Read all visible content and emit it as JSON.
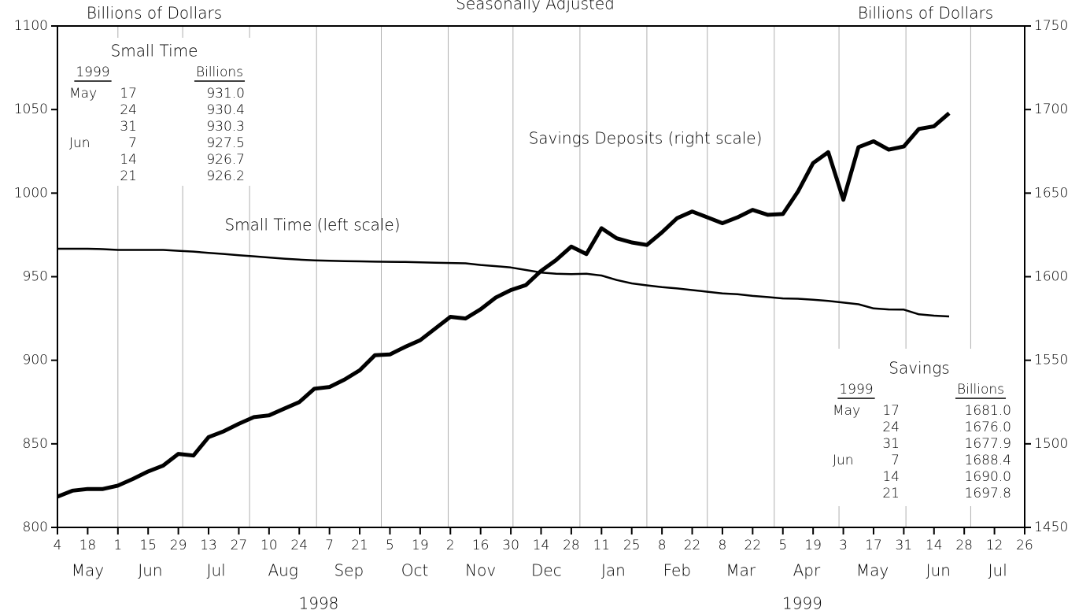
{
  "chart_data": {
    "type": "line",
    "title": "Seasonally Adjusted",
    "y_label": "Billions of Dollars",
    "y2_label": "Billions of Dollars",
    "x": [
      "1998-05-04",
      "1998-05-11",
      "1998-05-18",
      "1998-05-25",
      "1998-06-01",
      "1998-06-08",
      "1998-06-15",
      "1998-06-22",
      "1998-06-29",
      "1998-07-06",
      "1998-07-13",
      "1998-07-20",
      "1998-07-27",
      "1998-08-03",
      "1998-08-10",
      "1998-08-17",
      "1998-08-24",
      "1998-08-31",
      "1998-09-07",
      "1998-09-14",
      "1998-09-21",
      "1998-09-28",
      "1998-10-05",
      "1998-10-12",
      "1998-10-19",
      "1998-10-26",
      "1998-11-02",
      "1998-11-09",
      "1998-11-16",
      "1998-11-23",
      "1998-11-30",
      "1998-12-07",
      "1998-12-14",
      "1998-12-21",
      "1998-12-28",
      "1999-01-04",
      "1999-01-11",
      "1999-01-18",
      "1999-01-25",
      "1999-02-01",
      "1999-02-08",
      "1999-02-15",
      "1999-02-22",
      "1999-03-01",
      "1999-03-08",
      "1999-03-15",
      "1999-03-22",
      "1999-03-29",
      "1999-04-05",
      "1999-04-12",
      "1999-04-19",
      "1999-04-26",
      "1999-05-03",
      "1999-05-10",
      "1999-05-17",
      "1999-05-24",
      "1999-05-31",
      "1999-06-07",
      "1999-06-14",
      "1999-06-21"
    ],
    "series": [
      {
        "name": "Small Time (left scale)",
        "color": "#000000",
        "axis": "y",
        "values": [
          966.7,
          966.7,
          966.7,
          966.5,
          966.0,
          966.0,
          966.0,
          966.0,
          965.5,
          965.0,
          964.2,
          963.6,
          962.8,
          962.2,
          961.5,
          960.8,
          960.2,
          959.8,
          959.5,
          959.3,
          959.2,
          959.0,
          958.9,
          958.8,
          958.6,
          958.4,
          958.2,
          958.0,
          957.0,
          956.3,
          955.5,
          954.0,
          952.5,
          951.8,
          951.5,
          951.8,
          950.7,
          948.0,
          946.0,
          944.8,
          943.8,
          943.0,
          942.0,
          941.0,
          940.0,
          939.5,
          938.5,
          937.8,
          937.0,
          936.8,
          936.2,
          935.5,
          934.5,
          933.5,
          931.0,
          930.4,
          930.3,
          927.5,
          926.7,
          926.2
        ]
      },
      {
        "name": "Savings Deposits (right scale)",
        "color": "#000000",
        "axis": "y2",
        "values": [
          1468.4,
          1472,
          1473,
          1473,
          1475,
          1479,
          1483.5,
          1487,
          1494,
          1493,
          1504,
          1507.5,
          1512,
          1516,
          1517,
          1521,
          1525,
          1533,
          1534,
          1538.5,
          1544,
          1553,
          1553.5,
          1558,
          1562,
          1569,
          1576,
          1575,
          1580.5,
          1587.5,
          1592,
          1595,
          1603.5,
          1610,
          1618,
          1613.5,
          1629,
          1623,
          1620.5,
          1619,
          1626.5,
          1635,
          1639,
          1635.5,
          1632,
          1635.5,
          1640,
          1637,
          1637.5,
          1651,
          1668,
          1674.5,
          1646,
          1677.5,
          1681.0,
          1676.0,
          1677.9,
          1688.4,
          1690.0,
          1697.8
        ]
      }
    ],
    "xlim": [
      "1998-05-04",
      "1999-07-26"
    ],
    "xticks": [
      {
        "value": "1998-05-04",
        "label": "4"
      },
      {
        "value": "1998-05-18",
        "label": "18"
      },
      {
        "value": "1998-06-01",
        "label": "1"
      },
      {
        "value": "1998-06-15",
        "label": "15"
      },
      {
        "value": "1998-06-29",
        "label": "29"
      },
      {
        "value": "1998-07-13",
        "label": "13"
      },
      {
        "value": "1998-07-27",
        "label": "27"
      },
      {
        "value": "1998-08-10",
        "label": "10"
      },
      {
        "value": "1998-08-24",
        "label": "24"
      },
      {
        "value": "1998-09-07",
        "label": "7"
      },
      {
        "value": "1998-09-21",
        "label": "21"
      },
      {
        "value": "1998-10-05",
        "label": "5"
      },
      {
        "value": "1998-10-19",
        "label": "19"
      },
      {
        "value": "1998-11-02",
        "label": "2"
      },
      {
        "value": "1998-11-16",
        "label": "16"
      },
      {
        "value": "1998-11-30",
        "label": "30"
      },
      {
        "value": "1998-12-14",
        "label": "14"
      },
      {
        "value": "1998-12-28",
        "label": "28"
      },
      {
        "value": "1999-01-11",
        "label": "11"
      },
      {
        "value": "1999-01-25",
        "label": "25"
      },
      {
        "value": "1999-02-08",
        "label": "8"
      },
      {
        "value": "1999-02-22",
        "label": "22"
      },
      {
        "value": "1999-03-08",
        "label": "8"
      },
      {
        "value": "1999-03-22",
        "label": "22"
      },
      {
        "value": "1999-04-05",
        "label": "5"
      },
      {
        "value": "1999-04-19",
        "label": "19"
      },
      {
        "value": "1999-05-03",
        "label": "3"
      },
      {
        "value": "1999-05-17",
        "label": "17"
      },
      {
        "value": "1999-05-31",
        "label": "31"
      },
      {
        "value": "1999-06-14",
        "label": "14"
      },
      {
        "value": "1999-06-28",
        "label": "28"
      },
      {
        "value": "1999-07-12",
        "label": "12"
      },
      {
        "value": "1999-07-26",
        "label": "26"
      }
    ],
    "months": [
      {
        "value": "1998-05",
        "label": "May"
      },
      {
        "value": "1998-06",
        "label": "Jun"
      },
      {
        "value": "1998-07",
        "label": "Jul"
      },
      {
        "value": "1998-08",
        "label": "Aug"
      },
      {
        "value": "1998-09",
        "label": "Sep"
      },
      {
        "value": "1998-10",
        "label": "Oct"
      },
      {
        "value": "1998-11",
        "label": "Nov"
      },
      {
        "value": "1998-12",
        "label": "Dec"
      },
      {
        "value": "1999-01",
        "label": "Jan"
      },
      {
        "value": "1999-02",
        "label": "Feb"
      },
      {
        "value": "1999-03",
        "label": "Mar"
      },
      {
        "value": "1999-04",
        "label": "Apr"
      },
      {
        "value": "1999-05",
        "label": "May"
      },
      {
        "value": "1999-06",
        "label": "Jun"
      },
      {
        "value": "1999-07",
        "label": "Jul"
      }
    ],
    "years": [
      {
        "value": "1998",
        "label": "1998"
      },
      {
        "value": "1999",
        "label": "1999"
      }
    ],
    "ylim": [
      800,
      1100
    ],
    "yticks": [
      800,
      850,
      900,
      950,
      1000,
      1050,
      1100
    ],
    "y2lim": [
      1450,
      1750
    ],
    "y2ticks": [
      1450,
      1500,
      1550,
      1600,
      1650,
      1700,
      1750
    ],
    "grid": true,
    "tables": [
      {
        "title": "Small Time",
        "col1": "1999",
        "col2": "Billions",
        "rows": [
          [
            "May",
            "17",
            "931.0"
          ],
          [
            "",
            "24",
            "930.4"
          ],
          [
            "",
            "31",
            "930.3"
          ],
          [
            "Jun",
            "7",
            "927.5"
          ],
          [
            "",
            "14",
            "926.7"
          ],
          [
            "",
            "21",
            "926.2"
          ]
        ]
      },
      {
        "title": "Savings",
        "col1": "1999",
        "col2": "Billions",
        "rows": [
          [
            "May",
            "17",
            "1681.0"
          ],
          [
            "",
            "24",
            "1676.0"
          ],
          [
            "",
            "31",
            "1677.9"
          ],
          [
            "Jun",
            "7",
            "1688.4"
          ],
          [
            "",
            "14",
            "1690.0"
          ],
          [
            "",
            "21",
            "1697.8"
          ]
        ]
      }
    ]
  }
}
